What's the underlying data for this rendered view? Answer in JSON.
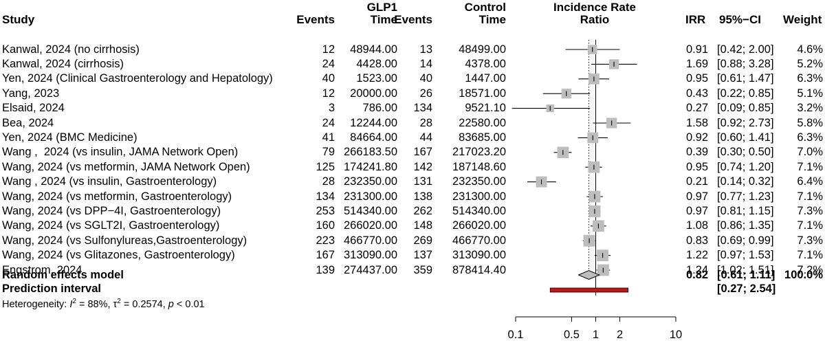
{
  "chart_data": {
    "type": "forest",
    "scale": "log",
    "xlim": [
      0.1,
      10
    ],
    "ticks": [
      0.1,
      0.5,
      1,
      2,
      10
    ],
    "tick_labels": [
      "0.1",
      "0.5",
      "1",
      "2",
      "10"
    ],
    "reference_line": 1,
    "pooled_line": 0.82,
    "headers": {
      "study": "Study",
      "events1": "Events",
      "glp1_l1": "GLP1",
      "glp1_l2": "Time",
      "events2": "Events",
      "control_l1": "Control",
      "control_l2": "Time",
      "irr_plot_l1": "Incidence Rate",
      "irr_plot_l2": "Ratio",
      "irr": "IRR",
      "ci": "95%−CI",
      "weight": "Weight"
    },
    "studies": [
      {
        "study": "Kanwal, 2024 (no cirrhosis)",
        "e1": "12",
        "t1": "48944.00",
        "e2": "13",
        "t2": "48499.00",
        "irr": 0.91,
        "lo": 0.42,
        "hi": 2.0,
        "irr_text": "0.91",
        "ci_text": "[0.42; 2.00]",
        "weight_text": "4.6%",
        "weight": 4.6
      },
      {
        "study": "Kanwal, 2024 (cirrhosis)",
        "e1": "24",
        "t1": "4428.00",
        "e2": "14",
        "t2": "4378.00",
        "irr": 1.69,
        "lo": 0.88,
        "hi": 3.28,
        "irr_text": "1.69",
        "ci_text": "[0.88; 3.28]",
        "weight_text": "5.2%",
        "weight": 5.2
      },
      {
        "study": "Yen, 2024 (Clinical Gastroenterology and Hepatology)",
        "e1": "40",
        "t1": "1523.00",
        "e2": "40",
        "t2": "1447.00",
        "irr": 0.95,
        "lo": 0.61,
        "hi": 1.47,
        "irr_text": "0.95",
        "ci_text": "[0.61; 1.47]",
        "weight_text": "6.3%",
        "weight": 6.3
      },
      {
        "study": "Yang, 2023",
        "e1": "12",
        "t1": "20000.00",
        "e2": "26",
        "t2": "18571.00",
        "irr": 0.43,
        "lo": 0.22,
        "hi": 0.85,
        "irr_text": "0.43",
        "ci_text": "[0.22; 0.85]",
        "weight_text": "5.1%",
        "weight": 5.1
      },
      {
        "study": "Elsaid, 2024",
        "e1": "3",
        "t1": "786.00",
        "e2": "134",
        "t2": "9521.10",
        "irr": 0.27,
        "lo": 0.09,
        "hi": 0.85,
        "irr_text": "0.27",
        "ci_text": "[0.09; 0.85]",
        "weight_text": "3.2%",
        "weight": 3.2
      },
      {
        "study": "Bea, 2024",
        "e1": "24",
        "t1": "12244.00",
        "e2": "28",
        "t2": "22580.00",
        "irr": 1.58,
        "lo": 0.92,
        "hi": 2.73,
        "irr_text": "1.58",
        "ci_text": "[0.92; 2.73]",
        "weight_text": "5.8%",
        "weight": 5.8
      },
      {
        "study": "Yen, 2024 (BMC Medicine)",
        "e1": "41",
        "t1": "84664.00",
        "e2": "44",
        "t2": "83685.00",
        "irr": 0.92,
        "lo": 0.6,
        "hi": 1.41,
        "irr_text": "0.92",
        "ci_text": "[0.60; 1.41]",
        "weight_text": "6.3%",
        "weight": 6.3
      },
      {
        "study": "Wang ,  2024 (vs insulin, JAMA Network Open)",
        "e1": "79",
        "t1": "266183.50",
        "e2": "167",
        "t2": "217023.20",
        "irr": 0.39,
        "lo": 0.3,
        "hi": 0.5,
        "irr_text": "0.39",
        "ci_text": "[0.30; 0.50]",
        "weight_text": "7.0%",
        "weight": 7.0
      },
      {
        "study": "Wang, 2024 (vs metformin, JAMA Network Open)",
        "e1": "125",
        "t1": "174241.80",
        "e2": "142",
        "t2": "187148.60",
        "irr": 0.95,
        "lo": 0.74,
        "hi": 1.2,
        "irr_text": "0.95",
        "ci_text": "[0.74; 1.20]",
        "weight_text": "7.1%",
        "weight": 7.1
      },
      {
        "study": "Wang , 2024 (vs insulin, Gastroenterology)",
        "e1": "28",
        "t1": "232350.00",
        "e2": "131",
        "t2": "232350.00",
        "irr": 0.21,
        "lo": 0.14,
        "hi": 0.32,
        "irr_text": "0.21",
        "ci_text": "[0.14; 0.32]",
        "weight_text": "6.4%",
        "weight": 6.4
      },
      {
        "study": "Wang, 2024 (vs metformin, Gastroenterology)",
        "e1": "134",
        "t1": "231300.00",
        "e2": "138",
        "t2": "231300.00",
        "irr": 0.97,
        "lo": 0.77,
        "hi": 1.23,
        "irr_text": "0.97",
        "ci_text": "[0.77; 1.23]",
        "weight_text": "7.1%",
        "weight": 7.1
      },
      {
        "study": "Wang, 2024 (vs DPP−4I, Gastroenterology)",
        "e1": "253",
        "t1": "514340.00",
        "e2": "262",
        "t2": "514340.00",
        "irr": 0.97,
        "lo": 0.81,
        "hi": 1.15,
        "irr_text": "0.97",
        "ci_text": "[0.81; 1.15]",
        "weight_text": "7.3%",
        "weight": 7.3
      },
      {
        "study": "Wang, 2024 (vs SGLT2I, Gastroenterology)",
        "e1": "160",
        "t1": "266020.00",
        "e2": "148",
        "t2": "266020.00",
        "irr": 1.08,
        "lo": 0.86,
        "hi": 1.35,
        "irr_text": "1.08",
        "ci_text": "[0.86; 1.35]",
        "weight_text": "7.1%",
        "weight": 7.1
      },
      {
        "study": "Wang, 2024 (vs Sulfonylureas,Gastroenterology)",
        "e1": "223",
        "t1": "466770.00",
        "e2": "269",
        "t2": "466770.00",
        "irr": 0.83,
        "lo": 0.69,
        "hi": 0.99,
        "irr_text": "0.83",
        "ci_text": "[0.69; 0.99]",
        "weight_text": "7.3%",
        "weight": 7.3
      },
      {
        "study": "Wang, 2024 (vs Glitazones, Gastroenterology)",
        "e1": "167",
        "t1": "313090.00",
        "e2": "137",
        "t2": "313090.00",
        "irr": 1.22,
        "lo": 0.97,
        "hi": 1.53,
        "irr_text": "1.22",
        "ci_text": "[0.97; 1.53]",
        "weight_text": "7.1%",
        "weight": 7.1
      },
      {
        "study": "Engstrom, 2024",
        "e1": "139",
        "t1": "274437.00",
        "e2": "359",
        "t2": "878414.40",
        "irr": 1.24,
        "lo": 1.02,
        "hi": 1.51,
        "irr_text": "1.24",
        "ci_text": "[1.02; 1.51]",
        "weight_text": "7.2%",
        "weight": 7.2
      }
    ],
    "random_effects": {
      "label": "Random effects model",
      "irr": 0.82,
      "lo": 0.61,
      "hi": 1.11,
      "irr_text": "0.82",
      "ci_text": "[0.61; 1.11]",
      "weight_text": "100.0%"
    },
    "prediction_interval": {
      "label": "Prediction interval",
      "lo": 0.27,
      "hi": 2.54,
      "ci_text": "[0.27; 2.54]"
    },
    "heterogeneity": {
      "prefix": "Heterogeneity: ",
      "i_sym": "I",
      "i_sup": "2",
      "i_val": " = 88%, ",
      "tau_sym": "τ",
      "tau_sup": "2",
      "tau_val": " = 0.2574, ",
      "p_sym": "p",
      "p_val": " < 0.01"
    },
    "colors": {
      "box": "#bdbdbd",
      "line": "#000000",
      "prediction": "#c0171a"
    }
  }
}
